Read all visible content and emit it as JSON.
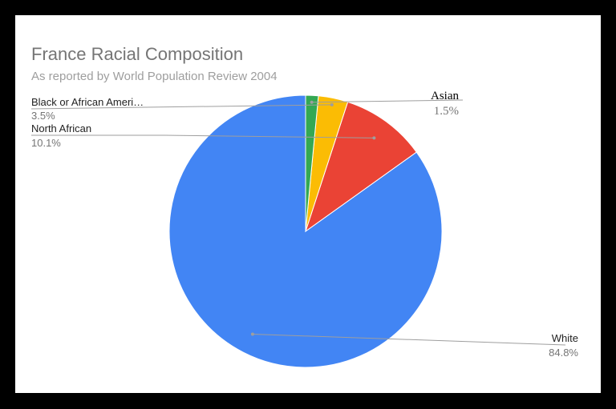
{
  "chart_data": {
    "type": "pie",
    "title": "France Racial Composition",
    "subtitle": "As reported by World Population Review 2004",
    "slices": [
      {
        "label": "White",
        "value": 84.8,
        "pct_label": "84.8%",
        "color": "#4285f4"
      },
      {
        "label": "North African",
        "value": 10.1,
        "pct_label": "10.1%",
        "color": "#ea4335"
      },
      {
        "label": "Black or African Ameri…",
        "value": 3.5,
        "pct_label": "3.5%",
        "color": "#fbbc04"
      },
      {
        "label": "Asian",
        "value": 1.5,
        "pct_label": "1.5%",
        "color": "#34a853"
      }
    ],
    "legend": "none"
  }
}
